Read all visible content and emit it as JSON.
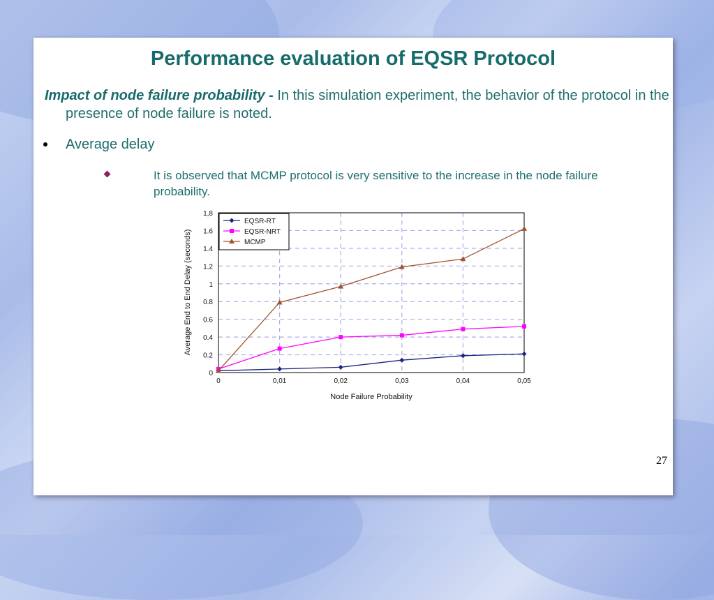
{
  "slide": {
    "title": "Performance evaluation of EQSR Protocol",
    "intro_lead": "Impact of node failure probability -",
    "intro_text": " In this simulation experiment, the behavior of the protocol in the presence of node failure is noted.",
    "bullet1": "Average delay",
    "bullet2": "It is observed that MCMP protocol is very sensitive to the increase in the node failure probability.",
    "page_number": "27"
  },
  "chart_data": {
    "type": "line",
    "title": "",
    "xlabel": "Node Failure Probability",
    "ylabel": "Average End to End Delay (seconds)",
    "x": [
      0,
      0.01,
      0.02,
      0.03,
      0.04,
      0.05
    ],
    "x_tick_labels": [
      "0",
      "0,01",
      "0,02",
      "0,03",
      "0,04",
      "0,05"
    ],
    "ylim": [
      0,
      1.8
    ],
    "y_ticks": [
      0,
      0.2,
      0.4,
      0.6,
      0.8,
      1,
      1.2,
      1.4,
      1.6,
      1.8
    ],
    "y_tick_labels": [
      "0",
      "0.2",
      "0.4",
      "0.6",
      "0.8",
      "1",
      "1.2",
      "1.4",
      "1.6",
      "1,8"
    ],
    "grid": true,
    "legend_position": "top-left",
    "series": [
      {
        "name": "EQSR-RT",
        "color": "#1a237e",
        "marker": "diamond",
        "values": [
          0.02,
          0.04,
          0.06,
          0.14,
          0.19,
          0.21
        ]
      },
      {
        "name": "EQSR-NRT",
        "color": "#ff00ff",
        "marker": "square",
        "values": [
          0.04,
          0.27,
          0.4,
          0.42,
          0.49,
          0.52
        ]
      },
      {
        "name": "MCMP",
        "color": "#a0522d",
        "marker": "triangle",
        "values": [
          0.02,
          0.79,
          0.97,
          1.19,
          1.28,
          1.62
        ]
      }
    ]
  }
}
